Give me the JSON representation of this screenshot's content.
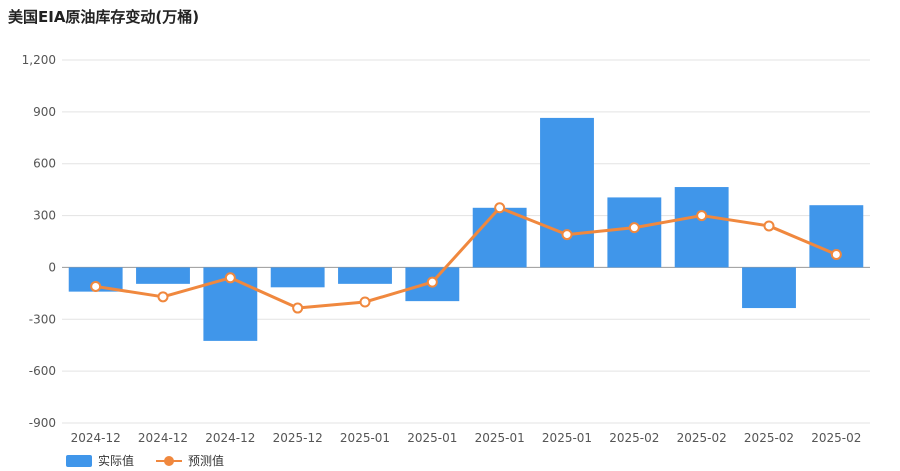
{
  "chart_data": {
    "type": "bar",
    "title": "美国EIA原油库存变动(万桶)",
    "categories": [
      "2024-12",
      "2024-12",
      "2024-12",
      "2025-12",
      "2025-01",
      "2025-01",
      "2025-01",
      "2025-01",
      "2025-02",
      "2025-02",
      "2025-02",
      "2025-02"
    ],
    "ylim": [
      -900,
      1200
    ],
    "yticks": [
      1200,
      900,
      600,
      300,
      0,
      -300,
      -600,
      -900
    ],
    "ytick_labels": [
      "1,200",
      "900",
      "600",
      "300",
      "0",
      "-300",
      "-600",
      "-900"
    ],
    "grid": true,
    "legend_position": "bottom-left",
    "series": [
      {
        "name": "实际值",
        "type": "bar",
        "color": "#4096ea",
        "values": [
          -140,
          -95,
          -425,
          -115,
          -95,
          -195,
          345,
          865,
          405,
          465,
          -235,
          360
        ]
      },
      {
        "name": "预测值",
        "type": "line",
        "color": "#f0883e",
        "values": [
          -110,
          -170,
          -60,
          -235,
          -200,
          -85,
          345,
          190,
          230,
          300,
          240,
          75
        ]
      }
    ]
  }
}
